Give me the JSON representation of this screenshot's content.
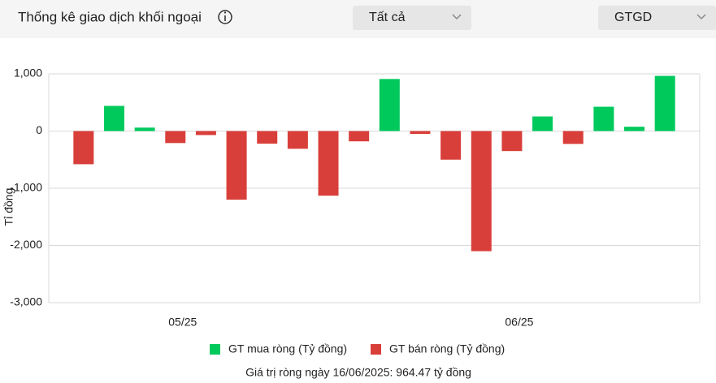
{
  "header": {
    "title": "Thống kê giao dịch khối ngoại",
    "filter": "Tất cả",
    "metric": "GTGD"
  },
  "chart_data": {
    "type": "bar",
    "y_label": "Tỉ đồng",
    "categories": [
      null,
      null,
      null,
      "05/25",
      null,
      null,
      null,
      null,
      null,
      null,
      null,
      null,
      null,
      null,
      "06/25",
      null,
      null,
      null,
      null,
      null
    ],
    "series": [
      {
        "name": "GT mua ròng (Tỷ đồng)",
        "color": "#00c95c",
        "values": [
          null,
          440,
          60,
          null,
          null,
          null,
          null,
          null,
          null,
          null,
          910,
          null,
          null,
          null,
          null,
          255,
          null,
          425,
          75,
          964.47
        ]
      },
      {
        "name": "GT bán ròng (Tỷ đồng)",
        "color": "#d93f3a",
        "values": [
          -580,
          null,
          null,
          -210,
          -70,
          -1200,
          -220,
          -310,
          -1130,
          -180,
          null,
          -50,
          -500,
          -2100,
          -350,
          null,
          -225,
          null,
          null,
          null
        ]
      }
    ],
    "ylim": [
      -3000,
      1000
    ],
    "yticks": [
      {
        "value": 1000,
        "label": "1,000"
      },
      0,
      {
        "value": -1000,
        "label": "-1,000"
      },
      {
        "value": -2000,
        "label": "-2,000"
      },
      {
        "value": -3000,
        "label": "-3,000"
      }
    ],
    "grid": true,
    "footer": "Giá trị ròng ngày 16/06/2025: 964.47 tỷ đồng"
  }
}
